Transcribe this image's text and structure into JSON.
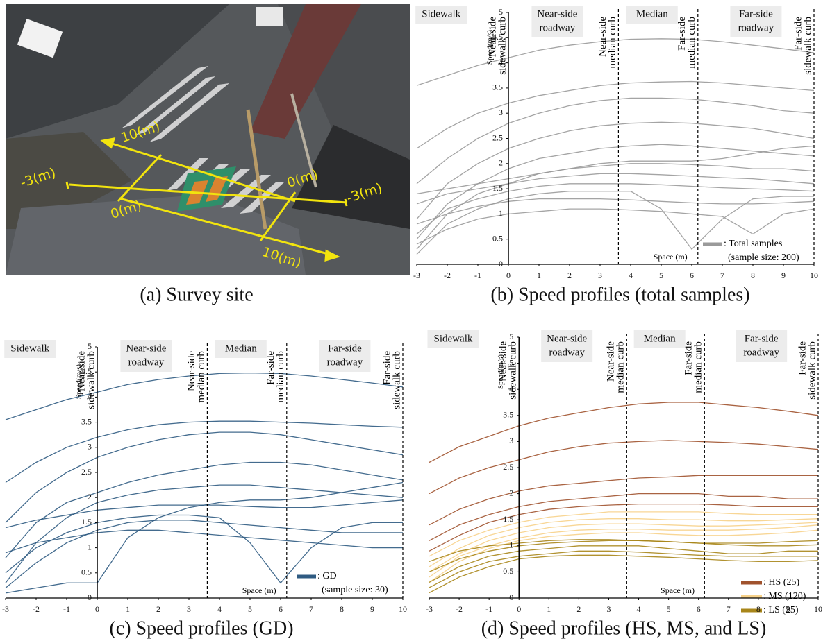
{
  "photo": {
    "caption": "(a) Survey site",
    "labels": [
      "10(m)",
      "-3(m)",
      "0(m)",
      "0(m)",
      "-3(m)",
      "10(m)"
    ]
  },
  "chart_data": [
    {
      "type": "line",
      "caption": "(b) Speed profiles (total samples)",
      "x": [
        -3,
        -2,
        -1,
        0,
        1,
        2,
        3,
        4,
        5,
        6,
        7,
        8,
        9,
        10
      ],
      "xlim": [
        -3,
        10
      ],
      "xticks": [
        -3,
        -2,
        -1,
        0,
        1,
        2,
        3,
        4,
        5,
        6,
        7,
        8,
        9,
        10
      ],
      "ylim": [
        0,
        5
      ],
      "yticks": [
        0,
        0.5,
        1,
        1.5,
        2,
        2.5,
        3,
        3.5,
        4,
        4.5,
        5
      ],
      "ylabel": "Speed(m/s)",
      "xlabel": "Space (m)",
      "regions": [
        [
          "Sidewalk"
        ],
        [
          "Near-side",
          "roadway"
        ],
        [
          "Median"
        ],
        [
          "Far-side",
          "roadway"
        ]
      ],
      "curbs": [
        {
          "x": 0,
          "lines": [
            "Near-side",
            "sidewalk curb"
          ]
        },
        {
          "x": 3.6,
          "lines": [
            "Near-side",
            "median curb"
          ]
        },
        {
          "x": 6.2,
          "lines": [
            "Far-side",
            "median curb"
          ]
        },
        {
          "x": 10,
          "lines": [
            "Far-side",
            "sidewalk curb"
          ]
        }
      ],
      "series": [
        {
          "name": ": Total samples",
          "note": "(sample size: 200)",
          "color": "#9a9a9a",
          "lines": [
            [
              3.55,
              3.75,
              3.95,
              4.1,
              4.25,
              4.35,
              4.42,
              4.47,
              4.48,
              4.47,
              4.42,
              4.35,
              4.28,
              4.2
            ],
            [
              2.3,
              2.7,
              3.0,
              3.2,
              3.35,
              3.45,
              3.55,
              3.6,
              3.62,
              3.63,
              3.6,
              3.55,
              3.5,
              3.45
            ],
            [
              1.6,
              2.1,
              2.5,
              2.8,
              3.0,
              3.15,
              3.25,
              3.3,
              3.3,
              3.28,
              3.22,
              3.15,
              3.05,
              3.0
            ],
            [
              0.9,
              1.6,
              2.0,
              2.3,
              2.5,
              2.65,
              2.75,
              2.8,
              2.82,
              2.8,
              2.75,
              2.7,
              2.6,
              2.5
            ],
            [
              0.5,
              1.2,
              1.6,
              1.9,
              2.1,
              2.2,
              2.3,
              2.35,
              2.38,
              2.35,
              2.3,
              2.25,
              2.2,
              2.15
            ],
            [
              0.3,
              1.0,
              1.4,
              1.6,
              1.8,
              1.9,
              1.95,
              2.0,
              2.0,
              1.98,
              1.95,
              1.9,
              1.9,
              1.85
            ],
            [
              1.2,
              1.4,
              1.5,
              1.6,
              1.7,
              1.75,
              1.8,
              1.8,
              1.78,
              1.75,
              1.72,
              1.7,
              1.65,
              1.6
            ],
            [
              0.6,
              1.1,
              1.3,
              1.45,
              1.55,
              1.6,
              1.6,
              1.6,
              1.58,
              1.55,
              1.52,
              1.5,
              1.48,
              1.45
            ],
            [
              0.2,
              0.8,
              1.1,
              1.3,
              1.4,
              1.45,
              1.45,
              1.45,
              1.1,
              0.3,
              0.9,
              1.3,
              1.35,
              1.35
            ],
            [
              0.8,
              1.0,
              1.15,
              1.25,
              1.3,
              1.3,
              1.3,
              1.28,
              1.25,
              1.22,
              1.2,
              1.2,
              1.22,
              1.25
            ],
            [
              0.4,
              0.7,
              0.9,
              1.0,
              1.05,
              1.1,
              1.1,
              1.08,
              1.05,
              1.0,
              0.95,
              0.6,
              1.0,
              1.1
            ],
            [
              1.4,
              1.5,
              1.6,
              1.7,
              1.8,
              1.9,
              2.0,
              2.05,
              2.05,
              2.05,
              2.1,
              2.2,
              2.3,
              2.35
            ]
          ]
        }
      ]
    },
    {
      "type": "line",
      "caption": "(c) Speed profiles (GD)",
      "x": [
        -3,
        -2,
        -1,
        0,
        1,
        2,
        3,
        4,
        5,
        6,
        7,
        8,
        9,
        10
      ],
      "xlim": [
        -3,
        10
      ],
      "xticks": [
        -3,
        -2,
        -1,
        0,
        1,
        2,
        3,
        4,
        5,
        6,
        7,
        8,
        9,
        10
      ],
      "ylim": [
        0,
        5
      ],
      "yticks": [
        0,
        0.5,
        1,
        1.5,
        2,
        2.5,
        3,
        3.5,
        4,
        4.5,
        5
      ],
      "ylabel": "Speed(m/s)",
      "xlabel": "Space (m)",
      "regions": [
        [
          "Sidewalk"
        ],
        [
          "Near-side",
          "roadway"
        ],
        [
          "Median"
        ],
        [
          "Far-side",
          "roadway"
        ]
      ],
      "curbs": [
        {
          "x": 0,
          "lines": [
            "Near-side",
            "sidewalk curb"
          ]
        },
        {
          "x": 3.6,
          "lines": [
            "Near-side",
            "median curb"
          ]
        },
        {
          "x": 6.2,
          "lines": [
            "Far-side",
            "median curb"
          ]
        },
        {
          "x": 10,
          "lines": [
            "Far-side",
            "sidewalk curb"
          ]
        }
      ],
      "series": [
        {
          "name": ": GD",
          "note": "(sample size: 30)",
          "color": "#2f5b82",
          "lines": [
            [
              3.55,
              3.75,
              3.95,
              4.1,
              4.25,
              4.35,
              4.42,
              4.47,
              4.48,
              4.47,
              4.42,
              4.35,
              4.28,
              4.2
            ],
            [
              2.3,
              2.7,
              3.0,
              3.2,
              3.35,
              3.45,
              3.5,
              3.52,
              3.52,
              3.5,
              3.48,
              3.45,
              3.42,
              3.4
            ],
            [
              1.5,
              2.1,
              2.5,
              2.8,
              3.0,
              3.15,
              3.25,
              3.3,
              3.3,
              3.25,
              3.15,
              3.05,
              2.95,
              2.85
            ],
            [
              0.8,
              1.5,
              1.9,
              2.1,
              2.3,
              2.45,
              2.55,
              2.65,
              2.7,
              2.7,
              2.65,
              2.55,
              2.45,
              2.35
            ],
            [
              0.3,
              1.1,
              1.6,
              1.9,
              2.05,
              2.15,
              2.2,
              2.25,
              2.25,
              2.2,
              2.15,
              2.1,
              2.05,
              2.0
            ],
            [
              1.4,
              1.55,
              1.65,
              1.75,
              1.8,
              1.85,
              1.85,
              1.85,
              1.82,
              1.8,
              1.8,
              1.85,
              1.9,
              1.95
            ],
            [
              0.5,
              1.0,
              1.3,
              1.5,
              1.6,
              1.65,
              1.65,
              1.6,
              1.1,
              0.3,
              1.0,
              1.4,
              1.5,
              1.5
            ],
            [
              0.2,
              0.7,
              1.1,
              1.35,
              1.5,
              1.55,
              1.55,
              1.5,
              1.45,
              1.4,
              1.35,
              1.3,
              1.3,
              1.3
            ],
            [
              0.9,
              1.1,
              1.2,
              1.3,
              1.35,
              1.35,
              1.3,
              1.25,
              1.2,
              1.15,
              1.1,
              1.05,
              1.0,
              1.0
            ],
            [
              0.1,
              0.2,
              0.3,
              0.3,
              1.2,
              1.6,
              1.8,
              1.9,
              1.95,
              1.95,
              2.0,
              2.1,
              2.2,
              2.3
            ]
          ]
        }
      ]
    },
    {
      "type": "line",
      "caption": "(d) Speed profiles (HS, MS, and LS)",
      "x": [
        -3,
        -2,
        -1,
        0,
        1,
        2,
        3,
        4,
        5,
        6,
        7,
        8,
        9,
        10
      ],
      "xlim": [
        -3,
        10
      ],
      "xticks": [
        -3,
        -2,
        -1,
        0,
        1,
        2,
        3,
        4,
        5,
        6,
        7,
        8,
        9,
        10
      ],
      "ylim": [
        0,
        5
      ],
      "yticks": [
        0,
        0.5,
        1,
        1.5,
        2,
        2.5,
        3,
        3.5,
        4,
        4.5,
        5
      ],
      "ylabel": "Speed(m/s)",
      "xlabel": "Space (m)",
      "regions": [
        [
          "Sidewalk"
        ],
        [
          "Near-side",
          "roadway"
        ],
        [
          "Median"
        ],
        [
          "Far-side",
          "roadway"
        ]
      ],
      "curbs": [
        {
          "x": 0,
          "lines": [
            "Near-side",
            "sidewalk curb"
          ]
        },
        {
          "x": 3.6,
          "lines": [
            "Near-side",
            "median curb"
          ]
        },
        {
          "x": 6.2,
          "lines": [
            "Far-side",
            "median curb"
          ]
        },
        {
          "x": 10,
          "lines": [
            "Far-side",
            "sidewalk curb"
          ]
        }
      ],
      "series": [
        {
          "name": ": HS (25)",
          "color": "#a0522d",
          "lines": [
            [
              2.6,
              2.9,
              3.1,
              3.3,
              3.45,
              3.55,
              3.65,
              3.72,
              3.75,
              3.75,
              3.7,
              3.65,
              3.58,
              3.5
            ],
            [
              2.0,
              2.3,
              2.5,
              2.65,
              2.8,
              2.9,
              2.97,
              3.0,
              3.02,
              3.0,
              2.98,
              2.95,
              2.9,
              2.85
            ],
            [
              1.4,
              1.7,
              1.9,
              2.05,
              2.15,
              2.2,
              2.25,
              2.3,
              2.32,
              2.35,
              2.35,
              2.35,
              2.35,
              2.35
            ],
            [
              1.1,
              1.4,
              1.6,
              1.75,
              1.85,
              1.9,
              1.95,
              2.0,
              2.0,
              2.0,
              1.95,
              1.95,
              1.9,
              1.9
            ],
            [
              0.9,
              1.2,
              1.45,
              1.6,
              1.7,
              1.75,
              1.78,
              1.8,
              1.8,
              1.8,
              1.78,
              1.75,
              1.75,
              1.75
            ]
          ]
        },
        {
          "name": ": MS (120)",
          "color": "#f7d28a",
          "lines": [
            [
              0.8,
              1.1,
              1.3,
              1.45,
              1.55,
              1.6,
              1.65,
              1.65,
              1.65,
              1.65,
              1.62,
              1.6,
              1.6,
              1.6
            ],
            [
              0.6,
              0.95,
              1.2,
              1.35,
              1.45,
              1.5,
              1.52,
              1.52,
              1.5,
              1.5,
              1.48,
              1.48,
              1.5,
              1.52
            ],
            [
              0.5,
              0.85,
              1.1,
              1.25,
              1.35,
              1.4,
              1.42,
              1.42,
              1.4,
              1.38,
              1.38,
              1.4,
              1.42,
              1.45
            ],
            [
              0.4,
              0.8,
              1.0,
              1.15,
              1.25,
              1.3,
              1.32,
              1.32,
              1.3,
              1.3,
              1.3,
              1.32,
              1.35,
              1.4
            ],
            [
              0.3,
              0.7,
              0.95,
              1.1,
              1.18,
              1.22,
              1.25,
              1.25,
              1.22,
              1.2,
              1.2,
              1.22,
              1.25,
              1.3
            ]
          ]
        },
        {
          "name": ": LS (25)",
          "color": "#a8861a",
          "lines": [
            [
              0.7,
              0.9,
              1.0,
              1.05,
              1.1,
              1.12,
              1.12,
              1.1,
              1.08,
              1.05,
              1.05,
              1.05,
              1.08,
              1.1
            ],
            [
              0.5,
              0.75,
              0.9,
              1.0,
              1.05,
              1.08,
              1.1,
              1.1,
              1.08,
              1.05,
              1.02,
              1.0,
              1.0,
              1.02
            ],
            [
              0.3,
              0.6,
              0.8,
              0.9,
              0.95,
              1.0,
              1.0,
              1.0,
              0.95,
              0.9,
              0.85,
              0.85,
              0.9,
              0.9
            ],
            [
              0.2,
              0.5,
              0.7,
              0.8,
              0.85,
              0.9,
              0.9,
              0.88,
              0.85,
              0.82,
              0.8,
              0.8,
              0.8,
              0.8
            ],
            [
              0.1,
              0.4,
              0.6,
              0.75,
              0.8,
              0.82,
              0.82,
              0.8,
              0.78,
              0.75,
              0.72,
              0.7,
              0.7,
              0.72
            ]
          ]
        }
      ]
    }
  ]
}
